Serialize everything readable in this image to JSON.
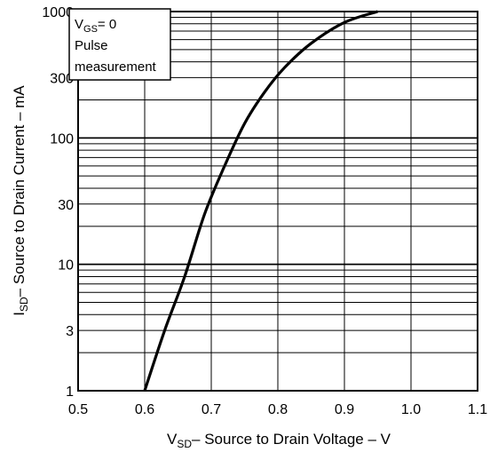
{
  "chart_data": {
    "type": "line",
    "title": "",
    "x_scale": "linear",
    "y_scale": "log",
    "xlim": [
      0.5,
      1.1
    ],
    "ylim": [
      1,
      1000
    ],
    "x_ticks": [
      0.5,
      0.6,
      0.7,
      0.8,
      0.9,
      1.0,
      1.1
    ],
    "x_tick_labels": [
      "0.5",
      "0.6",
      "0.7",
      "0.8",
      "0.9",
      "1.0",
      "1.1"
    ],
    "y_ticks": [
      1,
      3,
      10,
      30,
      100,
      300,
      1000
    ],
    "y_tick_labels": [
      "1",
      "3",
      "10",
      "30",
      "100",
      "300",
      "1000"
    ],
    "grid": true,
    "xlabel": {
      "sub": "SD",
      "text": "– Source to Drain Voltage – V",
      "prefix": "V"
    },
    "ylabel": {
      "sub": "SD",
      "text": "– Source to Drain Current – mA",
      "prefix": "I"
    },
    "annotation": {
      "line1_prefix": "V",
      "line1_sub": "GS",
      "line1_suffix": "= 0",
      "line2": "Pulse",
      "line3": "measurement"
    },
    "series": [
      {
        "x": [
          0.6,
          0.63,
          0.66,
          0.69,
          0.72,
          0.75,
          0.78,
          0.81,
          0.85,
          0.9,
          0.95
        ],
        "y": [
          1,
          3,
          8,
          25,
          60,
          130,
          230,
          360,
          560,
          820,
          1000
        ]
      }
    ]
  }
}
